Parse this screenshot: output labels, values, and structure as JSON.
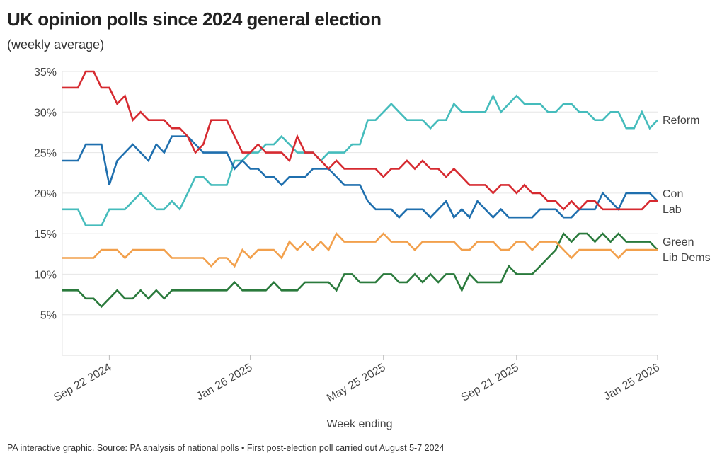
{
  "title": "UK opinion polls since 2024 general election",
  "subtitle": "(weekly average)",
  "footer": "PA interactive graphic. Source: PA analysis of national polls • First post-election poll carried out August 5-7 2024",
  "chart_data": {
    "type": "line",
    "title": "UK opinion polls since 2024 general election",
    "subtitle": "(weekly average)",
    "xlabel": "Week ending",
    "ylabel": "",
    "ylim": [
      0,
      35
    ],
    "y_ticks": [
      "5%",
      "10%",
      "15%",
      "20%",
      "25%",
      "30%",
      "35%"
    ],
    "y_tick_values": [
      5,
      10,
      15,
      20,
      25,
      30,
      35
    ],
    "x_ticks": [
      "Sep 22 2024",
      "Jan 26 2025",
      "May 25 2025",
      "Sep 21 2025",
      "Jan 25 2026"
    ],
    "x_tick_values": [
      "2024-09-22",
      "2025-01-26",
      "2025-05-25",
      "2025-09-21",
      "2026-01-25"
    ],
    "grid": true,
    "legend": "direct labels at line ends (right)",
    "x": [
      "2024-08-11",
      "2024-08-18",
      "2024-08-25",
      "2024-09-01",
      "2024-09-08",
      "2024-09-15",
      "2024-09-22",
      "2024-09-29",
      "2024-10-06",
      "2024-10-13",
      "2024-10-20",
      "2024-10-27",
      "2024-11-03",
      "2024-11-10",
      "2024-11-17",
      "2024-11-24",
      "2024-12-01",
      "2024-12-08",
      "2024-12-15",
      "2024-12-22",
      "2024-12-29",
      "2025-01-05",
      "2025-01-12",
      "2025-01-19",
      "2025-01-26",
      "2025-02-02",
      "2025-02-09",
      "2025-02-16",
      "2025-02-23",
      "2025-03-02",
      "2025-03-09",
      "2025-03-16",
      "2025-03-23",
      "2025-03-30",
      "2025-04-06",
      "2025-04-13",
      "2025-04-20",
      "2025-04-27",
      "2025-05-04",
      "2025-05-11",
      "2025-05-18",
      "2025-05-25",
      "2025-06-01",
      "2025-06-08",
      "2025-06-15",
      "2025-06-22",
      "2025-06-29",
      "2025-07-06",
      "2025-07-13",
      "2025-07-20",
      "2025-07-27",
      "2025-08-03",
      "2025-08-10",
      "2025-08-17",
      "2025-08-24",
      "2025-08-31",
      "2025-09-07",
      "2025-09-14",
      "2025-09-21",
      "2025-09-28",
      "2025-10-05",
      "2025-10-12",
      "2025-10-19",
      "2025-10-26",
      "2025-11-02",
      "2025-11-09",
      "2025-11-16",
      "2025-11-23",
      "2025-11-30",
      "2025-12-07",
      "2025-12-14",
      "2025-12-21",
      "2025-12-28",
      "2026-01-04",
      "2026-01-11",
      "2026-01-18",
      "2026-01-25"
    ],
    "series": [
      {
        "name": "Reform",
        "color": "#45bcbc",
        "values": [
          18,
          18,
          18,
          16,
          16,
          16,
          18,
          18,
          18,
          19,
          20,
          19,
          18,
          18,
          19,
          18,
          20,
          22,
          22,
          21,
          21,
          21,
          24,
          24,
          25,
          25,
          26,
          26,
          27,
          26,
          25,
          25,
          25,
          24,
          25,
          25,
          25,
          26,
          26,
          29,
          29,
          30,
          31,
          30,
          29,
          29,
          29,
          28,
          29,
          29,
          31,
          30,
          30,
          30,
          30,
          32,
          30,
          31,
          32,
          31,
          31,
          31,
          30,
          30,
          31,
          31,
          30,
          30,
          29,
          29,
          30,
          30,
          28,
          28,
          30,
          28,
          29
        ]
      },
      {
        "name": "Con",
        "color": "#1f6fae",
        "values": [
          24,
          24,
          24,
          26,
          26,
          26,
          21,
          24,
          25,
          26,
          25,
          24,
          26,
          25,
          27,
          27,
          27,
          26,
          25,
          25,
          25,
          25,
          23,
          24,
          23,
          23,
          22,
          22,
          21,
          22,
          22,
          22,
          23,
          23,
          23,
          22,
          21,
          21,
          21,
          19,
          18,
          18,
          18,
          17,
          18,
          18,
          18,
          17,
          18,
          19,
          17,
          18,
          17,
          19,
          18,
          17,
          18,
          17,
          17,
          17,
          17,
          18,
          18,
          18,
          17,
          17,
          18,
          18,
          18,
          20,
          19,
          18,
          20,
          20,
          20,
          20,
          19
        ]
      },
      {
        "name": "Lab",
        "color": "#d62a30",
        "values": [
          33,
          33,
          33,
          35,
          35,
          33,
          33,
          31,
          32,
          29,
          30,
          29,
          29,
          29,
          28,
          28,
          27,
          25,
          26,
          29,
          29,
          29,
          27,
          25,
          25,
          26,
          25,
          25,
          25,
          24,
          27,
          25,
          25,
          24,
          23,
          24,
          23,
          23,
          23,
          23,
          23,
          22,
          23,
          23,
          24,
          23,
          24,
          23,
          23,
          22,
          23,
          22,
          21,
          21,
          21,
          20,
          21,
          21,
          20,
          21,
          20,
          20,
          19,
          19,
          18,
          19,
          18,
          19,
          19,
          18,
          18,
          18,
          18,
          18,
          18,
          19,
          19
        ]
      },
      {
        "name": "Green",
        "color": "#2a7a3c",
        "values": [
          8,
          8,
          8,
          7,
          7,
          6,
          7,
          8,
          7,
          7,
          8,
          7,
          8,
          7,
          8,
          8,
          8,
          8,
          8,
          8,
          8,
          8,
          9,
          8,
          8,
          8,
          8,
          9,
          8,
          8,
          8,
          9,
          9,
          9,
          9,
          8,
          10,
          10,
          9,
          9,
          9,
          10,
          10,
          9,
          9,
          10,
          9,
          10,
          9,
          10,
          10,
          8,
          10,
          9,
          9,
          9,
          9,
          11,
          10,
          10,
          10,
          11,
          12,
          13,
          15,
          14,
          15,
          15,
          14,
          15,
          14,
          15,
          14,
          14,
          14,
          14,
          13
        ]
      },
      {
        "name": "Lib Dems",
        "color": "#f2a04c",
        "values": [
          12,
          12,
          12,
          12,
          12,
          13,
          13,
          13,
          12,
          13,
          13,
          13,
          13,
          13,
          12,
          12,
          12,
          12,
          12,
          11,
          12,
          12,
          11,
          13,
          12,
          13,
          13,
          13,
          12,
          14,
          13,
          14,
          13,
          14,
          13,
          15,
          14,
          14,
          14,
          14,
          14,
          15,
          14,
          14,
          14,
          13,
          14,
          14,
          14,
          14,
          14,
          13,
          13,
          14,
          14,
          14,
          13,
          13,
          14,
          14,
          13,
          14,
          14,
          14,
          13,
          12,
          13,
          13,
          13,
          13,
          13,
          12,
          13,
          13,
          13,
          13,
          13
        ]
      }
    ]
  }
}
